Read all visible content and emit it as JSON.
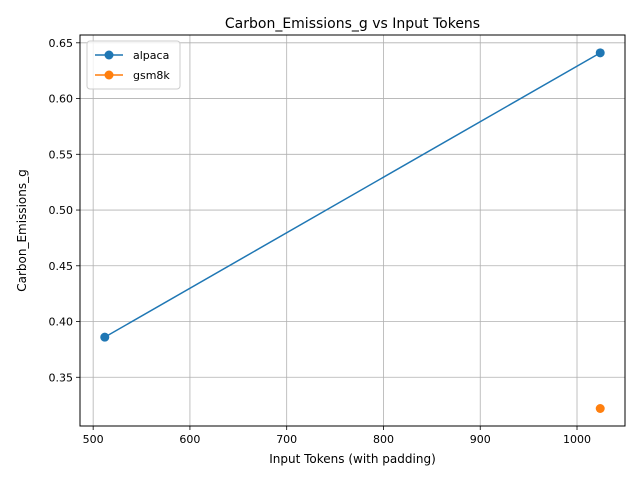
{
  "chart_data": {
    "type": "line",
    "title": "Carbon_Emissions_g vs Input Tokens",
    "xlabel": "Input Tokens (with padding)",
    "ylabel": "Carbon_Emissions_g",
    "xlim": [
      486.4,
      1049.6
    ],
    "ylim": [
      0.3063,
      0.657
    ],
    "x_ticks": [
      500,
      600,
      700,
      800,
      900,
      1000
    ],
    "x_tick_labels": [
      "500",
      "600",
      "700",
      "800",
      "900",
      "1000"
    ],
    "y_ticks": [
      0.35,
      0.4,
      0.45,
      0.5,
      0.55,
      0.6,
      0.65
    ],
    "y_tick_labels": [
      "0.35",
      "0.40",
      "0.45",
      "0.50",
      "0.55",
      "0.60",
      "0.65"
    ],
    "grid": true,
    "legend_position": "top-left",
    "series": [
      {
        "name": "alpaca",
        "color": "#1f77b4",
        "x": [
          512,
          1024
        ],
        "y": [
          0.386,
          0.641
        ]
      },
      {
        "name": "gsm8k",
        "color": "#ff7f0e",
        "x": [
          1024
        ],
        "y": [
          0.322
        ]
      }
    ]
  }
}
